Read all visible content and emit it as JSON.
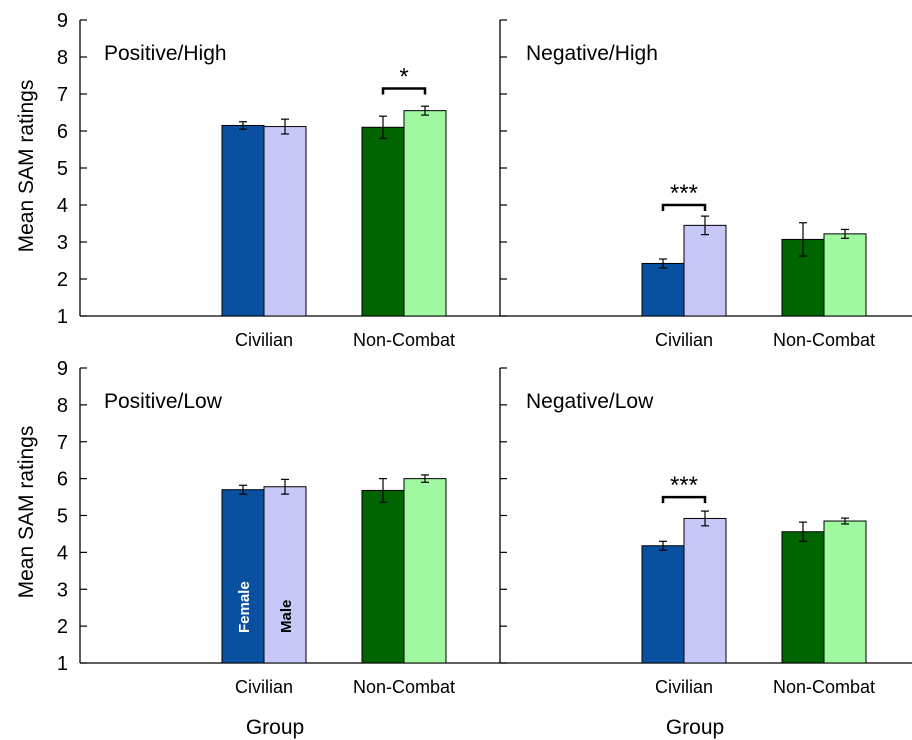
{
  "figure": {
    "ylabel": "Mean SAM ratings",
    "xlabel": "Group"
  },
  "colors": {
    "female_civilian": "#0a50a0",
    "male_civilian": "#c8c8f8",
    "female_noncombat": "#006400",
    "male_noncombat": "#a0f8a0",
    "axis": "#000000"
  },
  "chart_data": [
    {
      "type": "bar",
      "title": "Positive/High",
      "xlabel": "",
      "ylabel": "Mean SAM ratings",
      "ylim": [
        1,
        9
      ],
      "yticks": [
        1,
        2,
        3,
        4,
        5,
        6,
        7,
        8,
        9
      ],
      "categories": [
        "Civilian",
        "Non-Combat"
      ],
      "series": [
        {
          "name": "",
          "values": [
            6.15,
            6.1
          ],
          "errors": [
            0.1,
            0.3
          ]
        },
        {
          "name": "",
          "values": [
            6.12,
            6.55
          ],
          "errors": [
            0.2,
            0.12
          ]
        }
      ],
      "significance": [
        {
          "category": "Non-Combat",
          "label": "*",
          "y": 7.15
        }
      ]
    },
    {
      "type": "bar",
      "title": "Negative/High",
      "xlabel": "",
      "ylabel": "",
      "ylim": [
        1,
        9
      ],
      "yticks": [
        1,
        2,
        3,
        4,
        5,
        6,
        7,
        8,
        9
      ],
      "categories": [
        "Civilian",
        "Non-Combat"
      ],
      "series": [
        {
          "name": "",
          "values": [
            2.42,
            3.07
          ],
          "errors": [
            0.12,
            0.45
          ]
        },
        {
          "name": "",
          "values": [
            3.45,
            3.22
          ],
          "errors": [
            0.25,
            0.12
          ]
        }
      ],
      "significance": [
        {
          "category": "Civilian",
          "label": "***",
          "y": 4.0
        }
      ]
    },
    {
      "type": "bar",
      "title": "Positive/Low",
      "xlabel": "Group",
      "ylabel": "Mean SAM ratings",
      "ylim": [
        1,
        9
      ],
      "yticks": [
        1,
        2,
        3,
        4,
        5,
        6,
        7,
        8,
        9
      ],
      "categories": [
        "Civilian",
        "Non-Combat"
      ],
      "series": [
        {
          "name": "Female",
          "values": [
            5.7,
            5.68
          ],
          "errors": [
            0.12,
            0.32
          ]
        },
        {
          "name": "Male",
          "values": [
            5.78,
            6.0
          ],
          "errors": [
            0.2,
            0.1
          ]
        }
      ],
      "significance": []
    },
    {
      "type": "bar",
      "title": "Negative/Low",
      "xlabel": "Group",
      "ylabel": "",
      "ylim": [
        1,
        9
      ],
      "yticks": [
        1,
        2,
        3,
        4,
        5,
        6,
        7,
        8,
        9
      ],
      "categories": [
        "Civilian",
        "Non-Combat"
      ],
      "series": [
        {
          "name": "",
          "values": [
            4.18,
            4.56
          ],
          "errors": [
            0.12,
            0.26
          ]
        },
        {
          "name": "",
          "values": [
            4.92,
            4.85
          ],
          "errors": [
            0.2,
            0.08
          ]
        }
      ],
      "significance": [
        {
          "category": "Civilian",
          "label": "***",
          "y": 5.5
        }
      ]
    }
  ]
}
